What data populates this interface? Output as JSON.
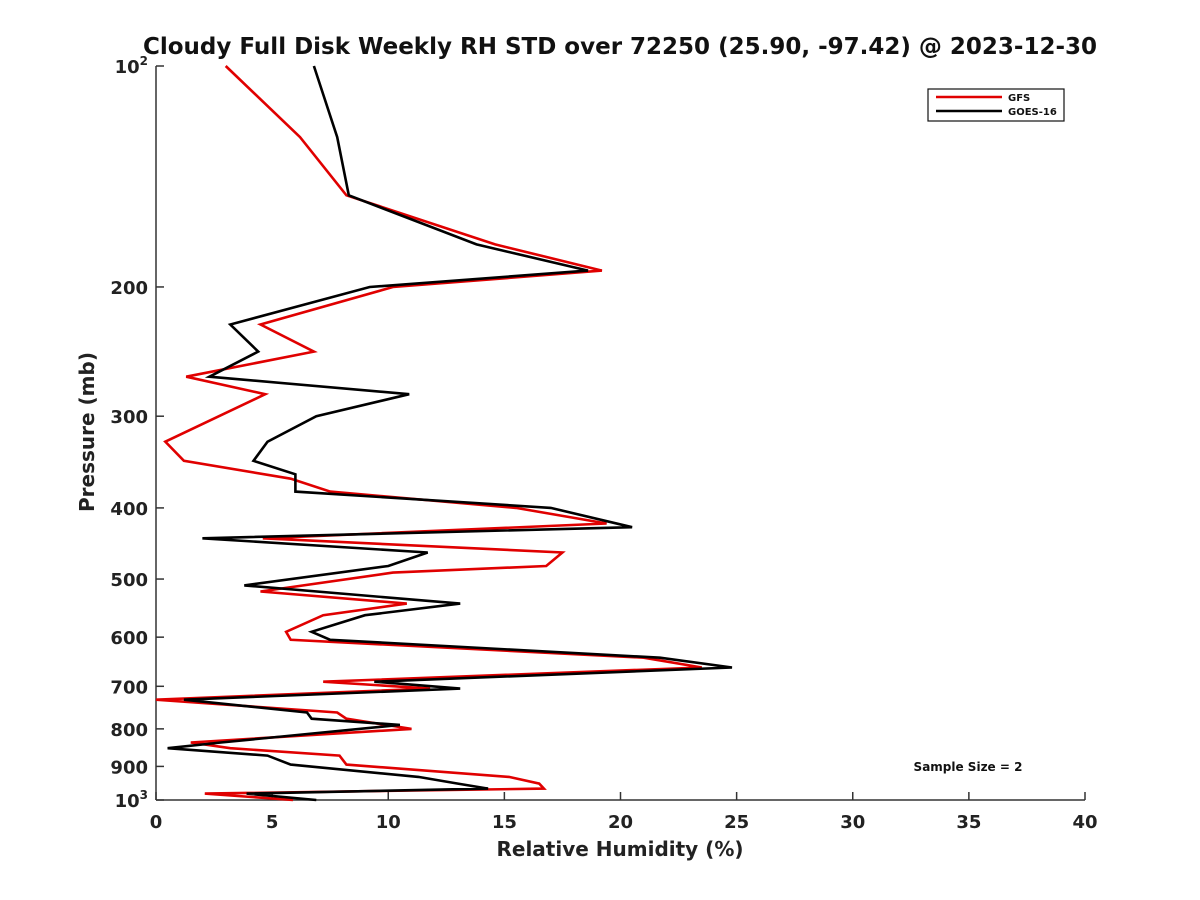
{
  "chart_data": {
    "type": "line",
    "title": "Cloudy Full Disk Weekly RH STD over 72250 (25.90, -97.42) @ 2023-12-30",
    "xlabel": "Relative Humidity (%)",
    "ylabel": "Pressure (mb)",
    "xlim": [
      0,
      40
    ],
    "ylim": [
      100,
      1000
    ],
    "y_scale": "log",
    "y_reversed": true,
    "grid": false,
    "legend_position": "top-right",
    "x_ticks": [
      "0",
      "5",
      "10",
      "15",
      "20",
      "25",
      "30",
      "35",
      "40"
    ],
    "y_ticks": [
      {
        "value": 100,
        "base": "10",
        "exp": "2"
      },
      {
        "value": 200,
        "label": "200"
      },
      {
        "value": 300,
        "label": "300"
      },
      {
        "value": 400,
        "label": "400"
      },
      {
        "value": 500,
        "label": "500"
      },
      {
        "value": 600,
        "label": "600"
      },
      {
        "value": 700,
        "label": "700"
      },
      {
        "value": 800,
        "label": "800"
      },
      {
        "value": 900,
        "label": "900"
      },
      {
        "value": 1000,
        "base": "10",
        "exp": "3"
      }
    ],
    "series": [
      {
        "name": "GFS",
        "color": "#e00000",
        "points": [
          [
            3.0,
            100
          ],
          [
            6.2,
            125
          ],
          [
            8.2,
            150
          ],
          [
            14.6,
            175
          ],
          [
            19.2,
            190
          ],
          [
            10.2,
            200
          ],
          [
            4.5,
            225
          ],
          [
            6.8,
            245
          ],
          [
            1.3,
            265
          ],
          [
            4.7,
            280
          ],
          [
            0.4,
            325
          ],
          [
            1.2,
            345
          ],
          [
            5.8,
            365
          ],
          [
            7.5,
            380
          ],
          [
            15.5,
            400
          ],
          [
            19.4,
            420
          ],
          [
            4.6,
            440
          ],
          [
            17.5,
            460
          ],
          [
            16.8,
            480
          ],
          [
            10.2,
            490
          ],
          [
            4.5,
            520
          ],
          [
            10.8,
            540
          ],
          [
            7.2,
            560
          ],
          [
            5.6,
            590
          ],
          [
            5.8,
            605
          ],
          [
            21.0,
            640
          ],
          [
            23.5,
            660
          ],
          [
            7.2,
            690
          ],
          [
            11.8,
            705
          ],
          [
            0.0,
            730
          ],
          [
            7.8,
            760
          ],
          [
            8.2,
            775
          ],
          [
            11.0,
            800
          ],
          [
            1.5,
            835
          ],
          [
            3.2,
            850
          ],
          [
            7.9,
            870
          ],
          [
            8.2,
            895
          ],
          [
            15.2,
            930
          ],
          [
            16.5,
            950
          ],
          [
            16.7,
            965
          ],
          [
            2.1,
            980
          ],
          [
            5.9,
            1000
          ]
        ]
      },
      {
        "name": "GOES-16",
        "color": "#000000",
        "points": [
          [
            6.8,
            100
          ],
          [
            7.8,
            125
          ],
          [
            8.3,
            150
          ],
          [
            13.8,
            175
          ],
          [
            18.6,
            190
          ],
          [
            9.2,
            200
          ],
          [
            3.2,
            225
          ],
          [
            4.4,
            245
          ],
          [
            2.3,
            265
          ],
          [
            10.9,
            280
          ],
          [
            6.9,
            300
          ],
          [
            4.8,
            325
          ],
          [
            4.2,
            345
          ],
          [
            6.0,
            360
          ],
          [
            6.0,
            380
          ],
          [
            17.0,
            400
          ],
          [
            20.5,
            425
          ],
          [
            2.0,
            440
          ],
          [
            11.7,
            460
          ],
          [
            10.0,
            480
          ],
          [
            3.8,
            510
          ],
          [
            13.1,
            540
          ],
          [
            9.0,
            560
          ],
          [
            6.7,
            590
          ],
          [
            7.5,
            605
          ],
          [
            21.7,
            640
          ],
          [
            24.8,
            660
          ],
          [
            9.4,
            690
          ],
          [
            13.1,
            705
          ],
          [
            1.2,
            730
          ],
          [
            6.5,
            760
          ],
          [
            6.7,
            775
          ],
          [
            10.5,
            790
          ],
          [
            2.8,
            835
          ],
          [
            0.5,
            850
          ],
          [
            4.8,
            870
          ],
          [
            5.8,
            895
          ],
          [
            11.3,
            930
          ],
          [
            13.0,
            950
          ],
          [
            14.3,
            965
          ],
          [
            3.9,
            980
          ],
          [
            6.9,
            1000
          ]
        ]
      }
    ],
    "legend": [
      {
        "name": "GFS",
        "color": "#e00000"
      },
      {
        "name": "GOES-16",
        "color": "#000000"
      }
    ],
    "annotation": "Sample Size = 2"
  }
}
